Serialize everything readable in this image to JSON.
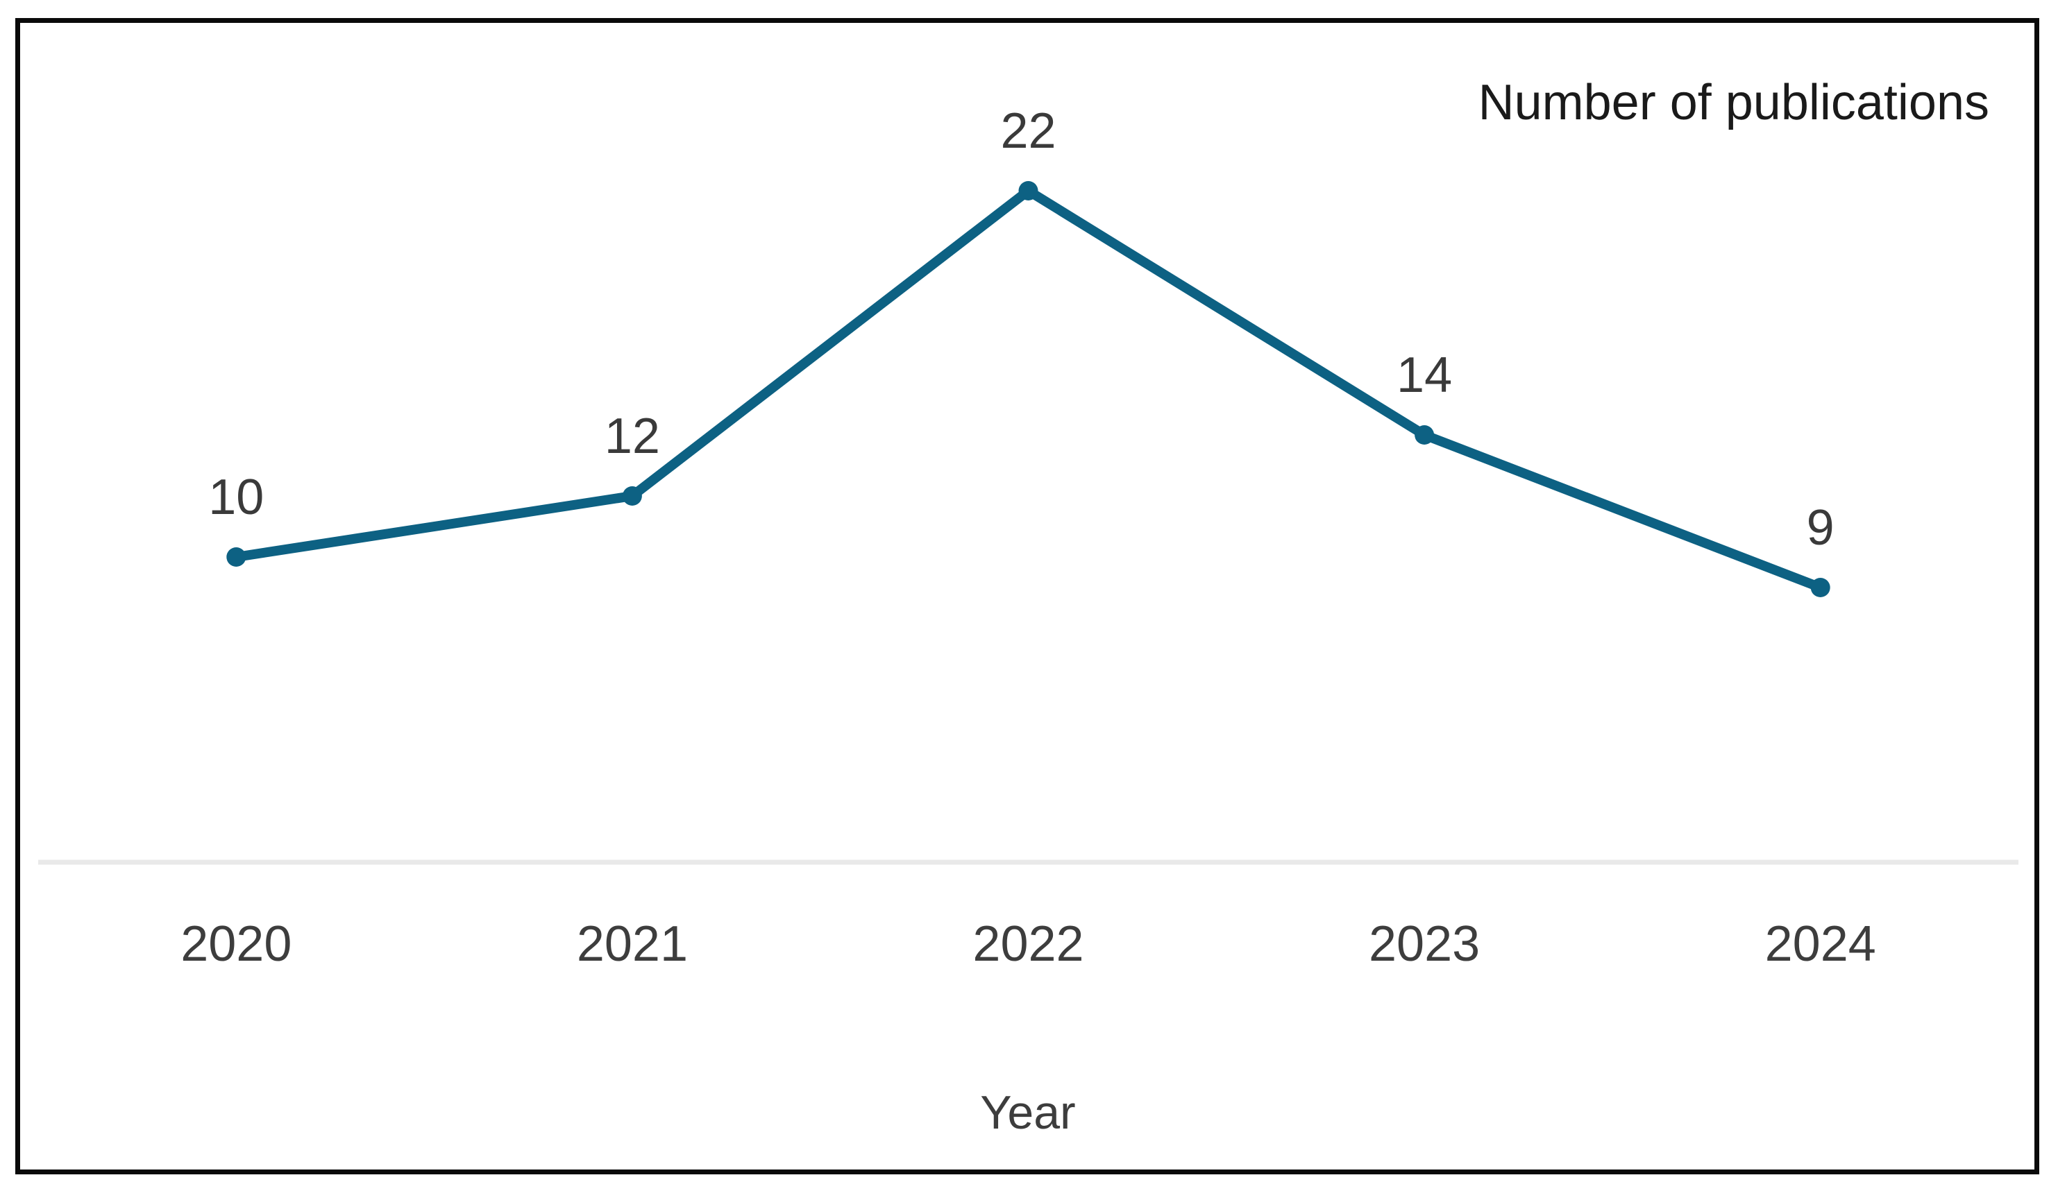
{
  "chart_data": {
    "type": "line",
    "title": "",
    "categories": [
      "2020",
      "2021",
      "2022",
      "2023",
      "2024"
    ],
    "series": [
      {
        "name": "Number of publications",
        "values": [
          10,
          12,
          22,
          14,
          9
        ]
      }
    ],
    "xlabel": "Year",
    "ylabel": "",
    "ylim": [
      0,
      27
    ],
    "grid": false,
    "legend_position": "top-right",
    "data_labels": true,
    "colors": {
      "line": "#0d6183",
      "marker": "#0d6183",
      "value_label": "#3a3a3a",
      "tick_label": "#3d3d3d",
      "axis_title": "#3d3d3d",
      "legend_text": "#1a1a1a",
      "axis_line": "#e9e9e9",
      "border": "#0a0a0a",
      "background": "#ffffff"
    }
  }
}
